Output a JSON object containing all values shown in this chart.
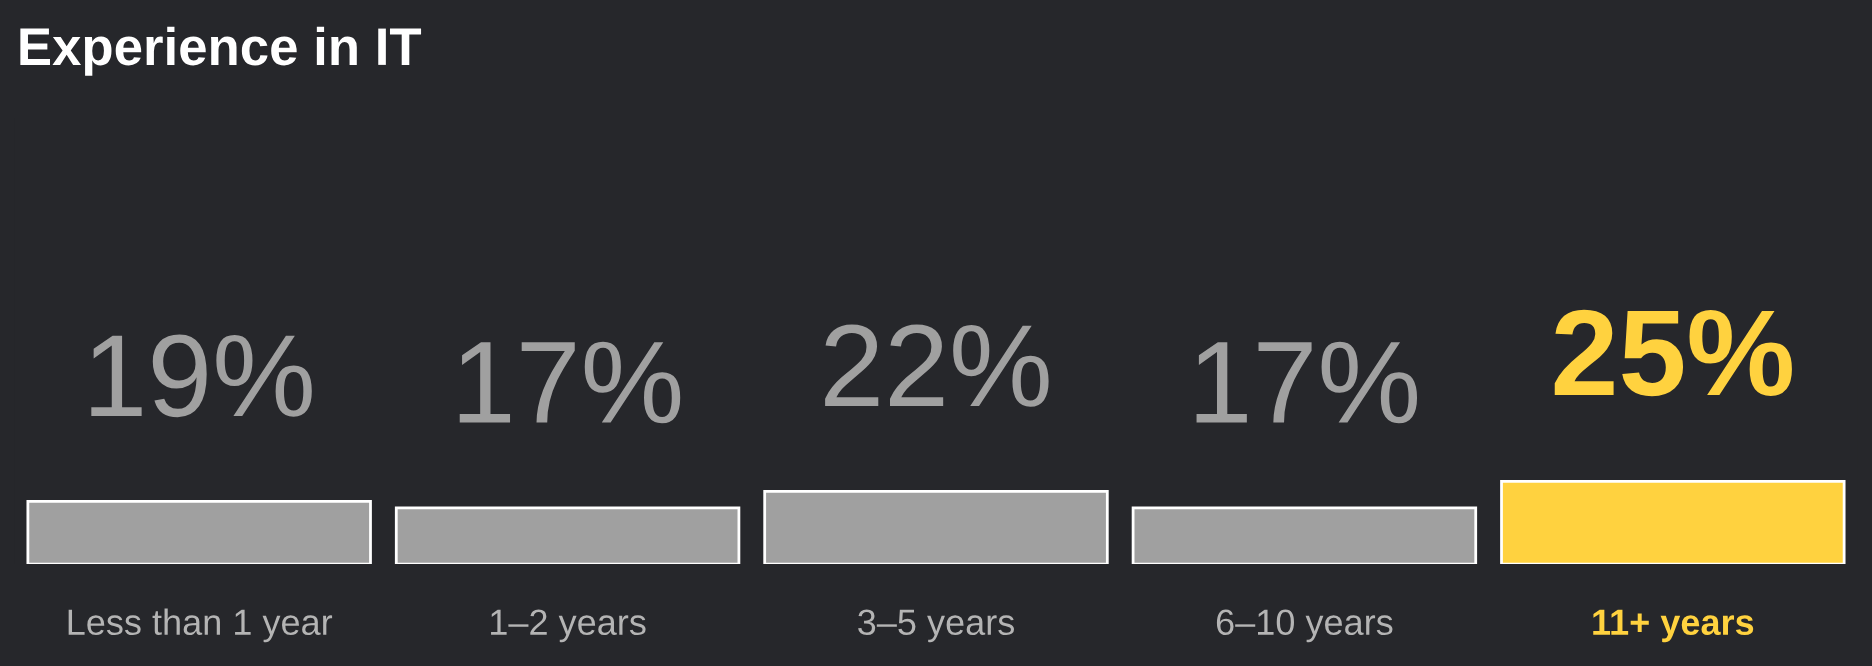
{
  "chart_data": {
    "type": "bar",
    "title": "Experience in IT",
    "categories": [
      "Less than 1 year",
      "1–2 years",
      "3–5 years",
      "6–10 years",
      "11+ years"
    ],
    "values": [
      19,
      17,
      22,
      17,
      25
    ],
    "colors": [
      "#a0a0a0",
      "#a0a0a0",
      "#a0a0a0",
      "#a0a0a0",
      "#ffd23f"
    ],
    "value_labels": [
      "19%",
      "17%",
      "22%",
      "17%",
      "25%"
    ],
    "grid": false,
    "legend": false
  }
}
